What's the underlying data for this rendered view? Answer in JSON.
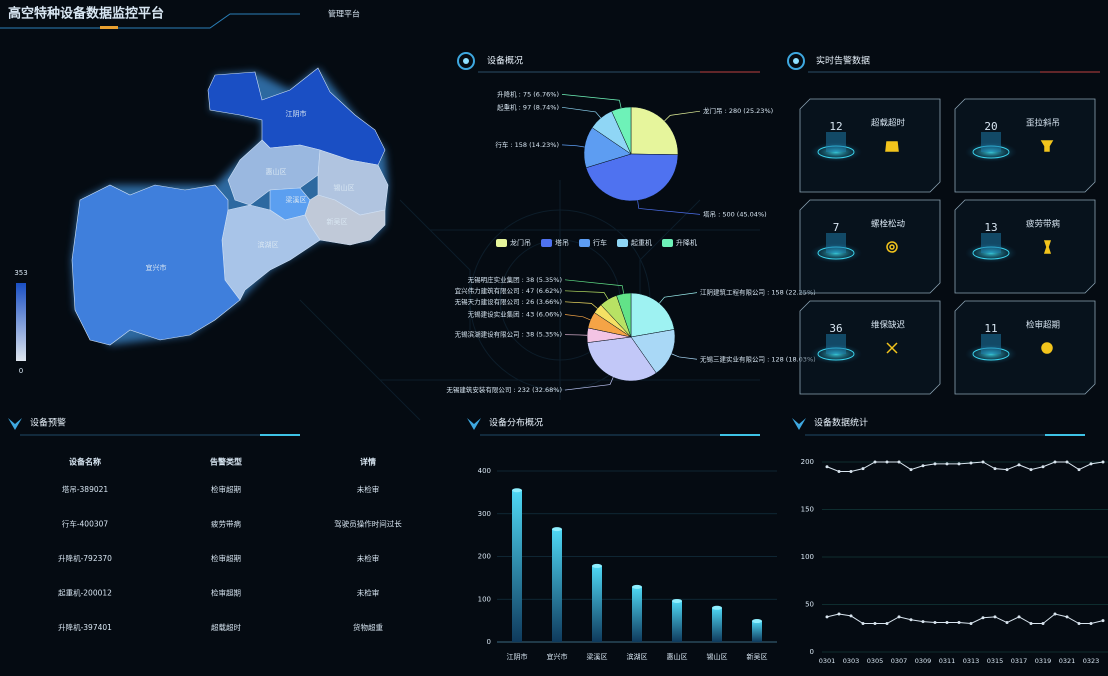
{
  "header": {
    "title": "高空特种设备数据监控平台",
    "nav": "管理平台"
  },
  "map": {
    "regions": [
      "江阴市",
      "惠山区",
      "锡山区",
      "梁溪区",
      "新吴区",
      "滨湖区",
      "宜兴市"
    ],
    "visual_max": "353",
    "visual_min": "0"
  },
  "chart_data": [
    {
      "type": "pie",
      "title": "设备概况",
      "categories": [
        "龙门吊",
        "塔吊",
        "行车",
        "起重机",
        "升降机"
      ],
      "values": [
        280,
        500,
        158,
        97,
        75
      ],
      "value_labels": [
        "龙门吊 : 280 (25.23%)",
        "塔吊 : 500 (45.04%)",
        "行车 : 158 (14.23%)",
        "起重机 : 97 (8.74%)",
        "升降机 : 75 (6.76%)"
      ],
      "colors": [
        "#e6f59c",
        "#4f72f0",
        "#5d9df2",
        "#8fd6f5",
        "#6ef2b8"
      ]
    },
    {
      "type": "pie",
      "categories": [
        "江阴建筑工程有限公司",
        "无锡三建实业有限公司",
        "无锡建筑安装有限公司",
        "无锡滨湖建设有限公司",
        "无锡建设实业集团",
        "无锡天力建设有限公司",
        "宜兴伟力建筑有限公司",
        "无锡明庄实业集团"
      ],
      "values": [
        158,
        128,
        232,
        38,
        43,
        26,
        47,
        38
      ],
      "value_labels": [
        "江阴建筑工程有限公司 : 158 (22.25%)",
        "无锡三建实业有限公司 : 128 (18.03%)",
        "无锡建筑安装有限公司 : 232 (32.68%)",
        "无锡滨湖建设有限公司 : 38 (5.35%)",
        "无锡建设实业集团 : 43 (6.06%)",
        "无锡天力建设有限公司 : 26 (3.66%)",
        "宜兴伟力建筑有限公司 : 47 (6.62%)",
        "无锡明庄实业集团 : 38 (5.35%)"
      ],
      "colors": [
        "#9ef2f2",
        "#a9d8f6",
        "#c2c8f8",
        "#f3c4e4",
        "#f5a446",
        "#f5e064",
        "#b8e264",
        "#62e288"
      ]
    },
    {
      "type": "bar",
      "title": "设备分布概况",
      "categories": [
        "江阴市",
        "宜兴市",
        "梁溪区",
        "滨湖区",
        "惠山区",
        "锡山区",
        "新吴区"
      ],
      "values": [
        355,
        264,
        178,
        129,
        96,
        80,
        49
      ],
      "ylim": [
        0,
        400
      ],
      "yticks": [
        0,
        100,
        200,
        300,
        400
      ],
      "grid": true,
      "color": "#3ec3e6"
    },
    {
      "type": "line",
      "title": "设备数据统计",
      "x": [
        "0301",
        null,
        "0303",
        null,
        "0305",
        null,
        "0307",
        null,
        "0309",
        null,
        "0311",
        null,
        "0313",
        null,
        "0315",
        null,
        "0317",
        null,
        "0319",
        null,
        "0321",
        null,
        "0323",
        null
      ],
      "series": [
        {
          "color": "#d8e4ee",
          "values": [
            195,
            190,
            190,
            193,
            200,
            200,
            200,
            192,
            196,
            198,
            198,
            198,
            199,
            200,
            193,
            192,
            197,
            192,
            195,
            200,
            200,
            192,
            198,
            200
          ]
        },
        {
          "color": "#d8e4ee",
          "values": [
            37,
            40,
            38,
            30,
            30,
            30,
            37,
            34,
            32,
            31,
            31,
            31,
            30,
            36,
            37,
            31,
            37,
            30,
            30,
            40,
            37,
            30,
            30,
            33
          ]
        }
      ],
      "ylim": [
        0,
        200
      ],
      "yticks": [
        0,
        50,
        100,
        150,
        200
      ],
      "grid": true
    }
  ],
  "alarms": {
    "title": "实时告警数据",
    "items": [
      {
        "label": "超载超时",
        "count": "12"
      },
      {
        "label": "歪拉斜吊",
        "count": "20"
      },
      {
        "label": "螺栓松动",
        "count": "7"
      },
      {
        "label": "疲劳带病",
        "count": "13"
      },
      {
        "label": "维保缺迟",
        "count": "36"
      },
      {
        "label": "检审超期",
        "count": "11"
      }
    ]
  },
  "table": {
    "title": "设备预警",
    "headers": [
      "设备名称",
      "告警类型",
      "详情"
    ],
    "rows": [
      [
        "塔吊-389021",
        "检审超期",
        "未检审"
      ],
      [
        "行车-400307",
        "疲劳带病",
        "驾驶员操作时间过长"
      ],
      [
        "升降机-792370",
        "检审超期",
        "未检审"
      ],
      [
        "起重机-200012",
        "检审超期",
        "未检审"
      ],
      [
        "升降机-397401",
        "超载超时",
        "货物超重"
      ]
    ]
  }
}
